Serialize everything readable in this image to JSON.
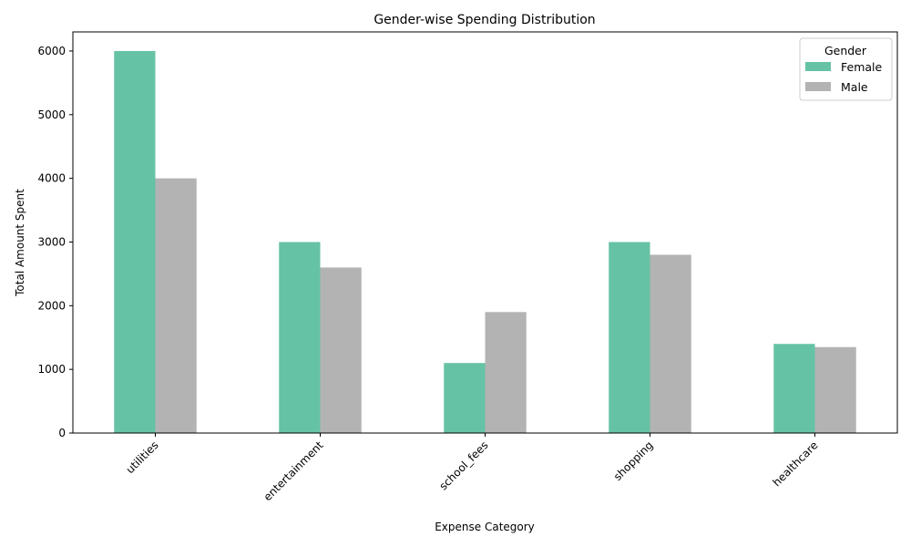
{
  "chart_data": {
    "type": "bar",
    "title": "Gender-wise Spending Distribution",
    "xlabel": "Expense Category",
    "ylabel": "Total Amount Spent",
    "categories": [
      "utilities",
      "entertainment",
      "school_fees",
      "shopping",
      "healthcare"
    ],
    "series": [
      {
        "name": "Female",
        "color": "#66c2a5",
        "values": [
          6000,
          3000,
          1100,
          3000,
          1400
        ]
      },
      {
        "name": "Male",
        "color": "#b3b3b3",
        "values": [
          4000,
          2600,
          1900,
          2800,
          1350
        ]
      }
    ],
    "ylim": [
      0,
      6300
    ],
    "yticks": [
      0,
      1000,
      2000,
      3000,
      4000,
      5000,
      6000
    ],
    "legend": {
      "title": "Gender",
      "placement": "top-right"
    },
    "grid": false
  }
}
